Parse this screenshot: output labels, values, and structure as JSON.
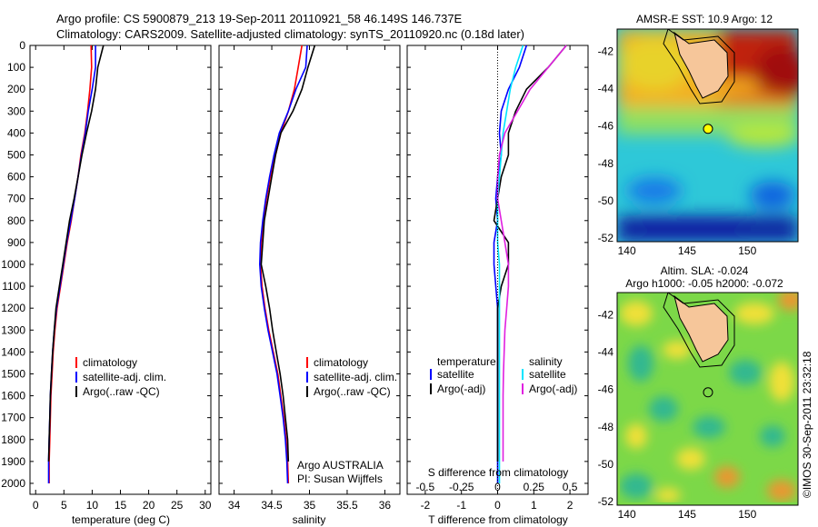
{
  "header": {
    "line1": "Argo profile: CS 5900879_213 19-Sep-2011 20110921_58 46.149S 146.737E",
    "line2": "Climatology: CARS2009. Satellite-adjusted climatology: synTS_20110920.nc (0.18d later)"
  },
  "credit": "©IMOS 30-Sep-2011 23:32:18",
  "colors": {
    "climatology": "#ff0000",
    "satellite": "#0000ff",
    "argo": "#000000",
    "sat_salinity": "#00e5ff",
    "argo_salinity": "#e020e0"
  },
  "chart_data": [
    {
      "type": "line",
      "id": "temperature",
      "xlabel": "temperature (deg C)",
      "ylabel": "",
      "xlim": [
        -1,
        31
      ],
      "ylim": [
        0,
        2050
      ],
      "y_inverted": true,
      "xticks": [
        0,
        5,
        10,
        15,
        20,
        25,
        30
      ],
      "yticks": [
        0,
        100,
        200,
        300,
        400,
        500,
        600,
        700,
        800,
        900,
        1000,
        1100,
        1200,
        1300,
        1400,
        1500,
        1600,
        1700,
        1800,
        1900,
        2000
      ],
      "legend": [
        "climatology",
        "satellite-adj. clim.",
        "Argo(..raw -QC)"
      ],
      "legend_position": "center-right",
      "series": [
        {
          "name": "climatology",
          "color": "#ff0000",
          "x": [
            9.8,
            9.9,
            9.6,
            9.2,
            8.7,
            8.0,
            7.5,
            6.9,
            6.3,
            5.6,
            5.0,
            4.4,
            3.8,
            3.4,
            3.1,
            2.9,
            2.7,
            2.6,
            2.5,
            2.4,
            2.4
          ],
          "y": [
            0,
            100,
            200,
            300,
            400,
            500,
            600,
            700,
            800,
            900,
            1000,
            1100,
            1200,
            1300,
            1400,
            1500,
            1600,
            1700,
            1800,
            1900,
            2000
          ]
        },
        {
          "name": "satellite-adj. clim.",
          "color": "#0000ff",
          "x": [
            10.6,
            10.6,
            10.0,
            9.3,
            8.8,
            8.1,
            7.5,
            6.9,
            6.2,
            5.5,
            4.9,
            4.3,
            3.7,
            3.3,
            3.0,
            2.8,
            2.6,
            2.5,
            2.4,
            2.3,
            2.3
          ],
          "y": [
            0,
            100,
            200,
            300,
            400,
            500,
            600,
            700,
            800,
            900,
            1000,
            1100,
            1200,
            1300,
            1400,
            1500,
            1600,
            1700,
            1800,
            1900,
            2000
          ]
        },
        {
          "name": "Argo(..raw -QC)",
          "color": "#000000",
          "x": [
            12.0,
            11.0,
            10.6,
            9.9,
            9.0,
            8.2,
            7.5,
            6.8,
            6.0,
            5.4,
            4.8,
            4.2,
            3.6,
            3.3,
            3.0,
            2.8,
            2.6,
            2.5,
            2.4,
            2.3
          ],
          "y": [
            0,
            100,
            200,
            300,
            400,
            500,
            600,
            700,
            800,
            900,
            1000,
            1100,
            1200,
            1300,
            1400,
            1500,
            1600,
            1700,
            1800,
            1900
          ]
        }
      ]
    },
    {
      "type": "line",
      "id": "salinity",
      "xlabel": "salinity",
      "ylabel": "",
      "xlim": [
        33.8,
        36.2
      ],
      "ylim": [
        0,
        2050
      ],
      "y_inverted": true,
      "xticks": [
        34,
        34.5,
        35,
        35.5,
        36
      ],
      "legend": [
        "climatology",
        "satellite-adj. clim.",
        "Argo(..raw -QC)"
      ],
      "legend_position": "center-right",
      "annotation": [
        "Argo AUSTRALIA",
        "PI: Susan Wijffels"
      ],
      "series": [
        {
          "name": "climatology",
          "color": "#ff0000",
          "x": [
            34.9,
            34.85,
            34.8,
            34.72,
            34.62,
            34.55,
            34.48,
            34.43,
            34.39,
            34.36,
            34.35,
            34.37,
            34.41,
            34.46,
            34.52,
            34.58,
            34.62,
            34.66,
            34.69,
            34.71,
            34.72
          ],
          "y": [
            0,
            100,
            200,
            300,
            400,
            500,
            600,
            700,
            800,
            900,
            1000,
            1100,
            1200,
            1300,
            1400,
            1500,
            1600,
            1700,
            1800,
            1900,
            2000
          ]
        },
        {
          "name": "satellite-adj. clim.",
          "color": "#0000ff",
          "x": [
            34.97,
            34.95,
            34.82,
            34.72,
            34.6,
            34.53,
            34.47,
            34.42,
            34.38,
            34.35,
            34.34,
            34.36,
            34.4,
            34.45,
            34.51,
            34.57,
            34.61,
            34.65,
            34.68,
            34.7,
            34.71
          ],
          "y": [
            0,
            100,
            200,
            300,
            400,
            500,
            600,
            700,
            800,
            900,
            1000,
            1100,
            1200,
            1300,
            1400,
            1500,
            1600,
            1700,
            1800,
            1900,
            2000
          ]
        },
        {
          "name": "Argo(..raw -QC)",
          "color": "#000000",
          "x": [
            35.07,
            34.98,
            34.9,
            34.78,
            34.62,
            34.55,
            34.5,
            34.45,
            34.4,
            34.38,
            34.36,
            34.42,
            34.47,
            34.51,
            34.56,
            34.61,
            34.65,
            34.68,
            34.71,
            34.72
          ],
          "y": [
            0,
            100,
            200,
            300,
            400,
            500,
            600,
            700,
            800,
            900,
            1000,
            1100,
            1200,
            1300,
            1400,
            1500,
            1600,
            1700,
            1800,
            1900
          ]
        }
      ]
    },
    {
      "type": "line",
      "id": "difference",
      "xlabel": "T difference from climatology",
      "xlabel_top": "S difference from climatology",
      "xlim": [
        -2.5,
        2.5
      ],
      "ylim": [
        0,
        2050
      ],
      "y_inverted": true,
      "xticks": [
        -2,
        -1,
        0,
        1,
        2
      ],
      "xticks_top": [
        "-0.5",
        "-0.25",
        "0",
        "0.25",
        "0.5"
      ],
      "legend_headers": [
        "temperature",
        "salinity"
      ],
      "legend": [
        "satellite",
        "Argo(-adj)",
        "satellite",
        "Argo(-adj)"
      ],
      "legend_position": "center",
      "series": [
        {
          "name": "temperature satellite",
          "color": "#0000ff",
          "x": [
            0.8,
            0.6,
            0.3,
            0.1,
            0.05,
            0.1,
            0.0,
            -0.05,
            0.0,
            -0.1,
            -0.1,
            -0.05,
            0.0,
            0.0,
            0.0,
            0.0,
            0.0,
            0.0,
            0.0,
            0.0,
            0.0
          ],
          "y": [
            0,
            100,
            200,
            300,
            400,
            500,
            600,
            700,
            800,
            900,
            1000,
            1100,
            1200,
            1300,
            1400,
            1500,
            1600,
            1700,
            1800,
            1900,
            2000
          ]
        },
        {
          "name": "temperature Argo(-adj)",
          "color": "#000000",
          "x": [
            1.9,
            1.4,
            0.8,
            0.5,
            0.3,
            0.3,
            0.1,
            0.0,
            -0.1,
            0.3,
            0.3,
            0.1,
            0.0,
            0.0,
            0.0,
            0.0,
            0.0,
            0.0,
            0.0,
            0.0
          ],
          "y": [
            0,
            100,
            200,
            300,
            400,
            500,
            600,
            700,
            800,
            900,
            1000,
            1100,
            1200,
            1300,
            1400,
            1500,
            1600,
            1700,
            1800,
            1900
          ]
        },
        {
          "name": "salinity satellite",
          "color": "#00e5ff",
          "x": [
            0.7,
            0.5,
            0.35,
            0.25,
            0.15,
            0.1,
            0.05,
            0.0,
            0.0,
            0.0,
            0.05,
            0.05,
            0.05,
            0.05,
            0.05,
            0.05,
            0.05,
            0.05,
            0.05,
            0.05,
            0.05
          ],
          "y": [
            0,
            100,
            200,
            300,
            400,
            500,
            600,
            700,
            800,
            900,
            1000,
            1100,
            1200,
            1300,
            1400,
            1500,
            1600,
            1700,
            1800,
            1900,
            2000
          ]
        },
        {
          "name": "salinity Argo(-adj)",
          "color": "#e020e0",
          "x": [
            1.9,
            1.4,
            0.9,
            0.55,
            0.2,
            0.05,
            0.0,
            0.0,
            0.1,
            0.2,
            0.3,
            0.3,
            0.25,
            0.2,
            0.18,
            0.16,
            0.15,
            0.15,
            0.15,
            0.15
          ],
          "y": [
            0,
            100,
            200,
            300,
            400,
            500,
            600,
            700,
            800,
            900,
            1000,
            1100,
            1200,
            1300,
            1400,
            1500,
            1600,
            1700,
            1800,
            1900
          ]
        }
      ]
    },
    {
      "type": "heatmap",
      "id": "sst_map",
      "title": "AMSR-E SST: 10.9 Argo: 12",
      "xticks": [
        140,
        145,
        150
      ],
      "yticks": [
        -42,
        -44,
        -46,
        -48,
        -50,
        -52
      ],
      "xlim": [
        139.2,
        154.2
      ],
      "ylim": [
        -52.2,
        -40.8
      ],
      "marker": {
        "lon": 146.737,
        "lat": -46.149,
        "fill": "#ffff00"
      }
    },
    {
      "type": "heatmap",
      "id": "sla_map",
      "title": "Altim. SLA: -0.024",
      "subtitle": "Argo h1000: -0.05 h2000: -0.072",
      "xticks": [
        140,
        145,
        150
      ],
      "yticks": [
        -42,
        -44,
        -46,
        -48,
        -50,
        -52
      ],
      "xlim": [
        139.2,
        154.2
      ],
      "ylim": [
        -52.2,
        -40.8
      ],
      "marker": {
        "lon": 146.737,
        "lat": -46.149,
        "fill": "none"
      }
    }
  ]
}
